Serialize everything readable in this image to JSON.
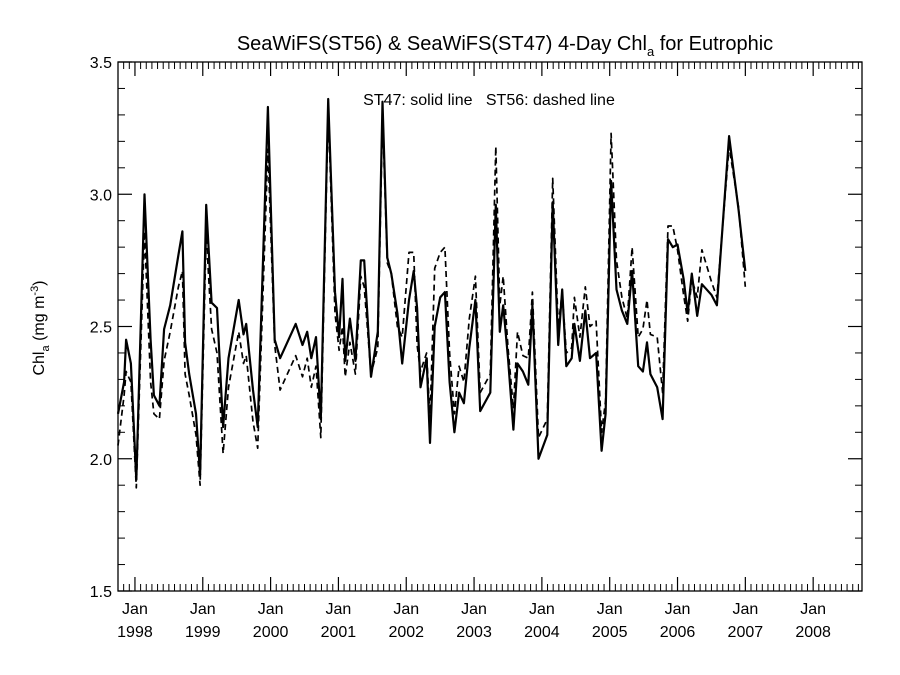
{
  "chart_data": {
    "type": "line",
    "title": {
      "main": "SeaWiFS(ST56) & SeaWiFS(ST47) 4-Day Chl",
      "sub": "a",
      "end": " for Eutrophic"
    },
    "annotation": "ST47: solid line   ST56: dashed line",
    "ylabel": {
      "base": "Chl",
      "sub": "a",
      "units_open": " (mg m",
      "sup": "-3",
      "units_close": ")"
    },
    "ylim": [
      1.5,
      3.5
    ],
    "y_ticks": [
      "1.5",
      "2.0",
      "2.5",
      "3.0",
      "3.5"
    ],
    "xlim": [
      1997.75,
      2008.72
    ],
    "x_ticks": [
      {
        "x": 1998,
        "month": "Jan",
        "year": "1998"
      },
      {
        "x": 1999,
        "month": "Jan",
        "year": "1999"
      },
      {
        "x": 2000,
        "month": "Jan",
        "year": "2000"
      },
      {
        "x": 2001,
        "month": "Jan",
        "year": "2001"
      },
      {
        "x": 2002,
        "month": "Jan",
        "year": "2002"
      },
      {
        "x": 2003,
        "month": "Jan",
        "year": "2003"
      },
      {
        "x": 2004,
        "month": "Jan",
        "year": "2004"
      },
      {
        "x": 2005,
        "month": "Jan",
        "year": "2005"
      },
      {
        "x": 2006,
        "month": "Jan",
        "year": "2006"
      },
      {
        "x": 2007,
        "month": "Jan",
        "year": "2007"
      },
      {
        "x": 2008,
        "month": "Jan",
        "year": "2008"
      }
    ],
    "series": [
      {
        "style": "solid",
        "color": "#000000",
        "points": [
          [
            1997.75,
            2.17
          ],
          [
            1997.84,
            2.29
          ],
          [
            1997.87,
            2.45
          ],
          [
            1997.94,
            2.36
          ],
          [
            1998.02,
            1.92
          ],
          [
            1998.14,
            3.0
          ],
          [
            1998.23,
            2.45
          ],
          [
            1998.28,
            2.24
          ],
          [
            1998.36,
            2.2
          ],
          [
            1998.43,
            2.49
          ],
          [
            1998.52,
            2.58
          ],
          [
            1998.64,
            2.77
          ],
          [
            1998.7,
            2.86
          ],
          [
            1998.74,
            2.44
          ],
          [
            1998.8,
            2.32
          ],
          [
            1998.9,
            2.17
          ],
          [
            1998.96,
            1.94
          ],
          [
            1999.05,
            2.96
          ],
          [
            1999.13,
            2.59
          ],
          [
            1999.21,
            2.57
          ],
          [
            1999.3,
            2.12
          ],
          [
            1999.38,
            2.38
          ],
          [
            1999.53,
            2.6
          ],
          [
            1999.6,
            2.47
          ],
          [
            1999.64,
            2.51
          ],
          [
            1999.74,
            2.26
          ],
          [
            1999.81,
            2.12
          ],
          [
            1999.96,
            3.33
          ],
          [
            2000.06,
            2.45
          ],
          [
            2000.14,
            2.38
          ],
          [
            2000.37,
            2.51
          ],
          [
            2000.47,
            2.43
          ],
          [
            2000.54,
            2.48
          ],
          [
            2000.6,
            2.38
          ],
          [
            2000.67,
            2.46
          ],
          [
            2000.74,
            2.15
          ],
          [
            2000.85,
            3.36
          ],
          [
            2000.95,
            2.63
          ],
          [
            2001.01,
            2.46
          ],
          [
            2001.06,
            2.68
          ],
          [
            2001.1,
            2.37
          ],
          [
            2001.17,
            2.53
          ],
          [
            2001.25,
            2.37
          ],
          [
            2001.33,
            2.75
          ],
          [
            2001.38,
            2.75
          ],
          [
            2001.48,
            2.31
          ],
          [
            2001.58,
            2.48
          ],
          [
            2001.65,
            3.35
          ],
          [
            2001.72,
            2.76
          ],
          [
            2001.78,
            2.7
          ],
          [
            2001.87,
            2.55
          ],
          [
            2001.94,
            2.36
          ],
          [
            2002.04,
            2.6
          ],
          [
            2002.11,
            2.71
          ],
          [
            2002.16,
            2.57
          ],
          [
            2002.21,
            2.27
          ],
          [
            2002.3,
            2.38
          ],
          [
            2002.35,
            2.06
          ],
          [
            2002.42,
            2.5
          ],
          [
            2002.5,
            2.61
          ],
          [
            2002.57,
            2.63
          ],
          [
            2002.64,
            2.29
          ],
          [
            2002.71,
            2.1
          ],
          [
            2002.78,
            2.25
          ],
          [
            2002.85,
            2.21
          ],
          [
            2002.93,
            2.42
          ],
          [
            2003.02,
            2.6
          ],
          [
            2003.09,
            2.18
          ],
          [
            2003.24,
            2.25
          ],
          [
            2003.32,
            2.96
          ],
          [
            2003.38,
            2.48
          ],
          [
            2003.43,
            2.58
          ],
          [
            2003.5,
            2.38
          ],
          [
            2003.58,
            2.11
          ],
          [
            2003.64,
            2.36
          ],
          [
            2003.72,
            2.33
          ],
          [
            2003.8,
            2.28
          ],
          [
            2003.86,
            2.58
          ],
          [
            2003.95,
            2.0
          ],
          [
            2004.08,
            2.09
          ],
          [
            2004.16,
            2.97
          ],
          [
            2004.24,
            2.43
          ],
          [
            2004.3,
            2.64
          ],
          [
            2004.36,
            2.35
          ],
          [
            2004.44,
            2.38
          ],
          [
            2004.48,
            2.51
          ],
          [
            2004.56,
            2.37
          ],
          [
            2004.64,
            2.56
          ],
          [
            2004.71,
            2.38
          ],
          [
            2004.8,
            2.4
          ],
          [
            2004.88,
            2.03
          ],
          [
            2004.94,
            2.17
          ],
          [
            2005.02,
            3.05
          ],
          [
            2005.1,
            2.64
          ],
          [
            2005.18,
            2.56
          ],
          [
            2005.26,
            2.51
          ],
          [
            2005.33,
            2.71
          ],
          [
            2005.42,
            2.35
          ],
          [
            2005.49,
            2.33
          ],
          [
            2005.55,
            2.44
          ],
          [
            2005.6,
            2.32
          ],
          [
            2005.7,
            2.27
          ],
          [
            2005.78,
            2.15
          ],
          [
            2005.86,
            2.83
          ],
          [
            2005.93,
            2.8
          ],
          [
            2006.0,
            2.81
          ],
          [
            2006.09,
            2.68
          ],
          [
            2006.15,
            2.55
          ],
          [
            2006.21,
            2.7
          ],
          [
            2006.29,
            2.54
          ],
          [
            2006.36,
            2.66
          ],
          [
            2006.5,
            2.62
          ],
          [
            2006.58,
            2.58
          ],
          [
            2006.76,
            3.22
          ],
          [
            2006.9,
            2.94
          ],
          [
            2007.0,
            2.71
          ]
        ]
      },
      {
        "style": "dashed",
        "color": "#000000",
        "points": [
          [
            1997.75,
            2.05
          ],
          [
            1997.84,
            2.24
          ],
          [
            1997.87,
            2.33
          ],
          [
            1997.94,
            2.29
          ],
          [
            1998.02,
            1.89
          ],
          [
            1998.14,
            2.86
          ],
          [
            1998.23,
            2.29
          ],
          [
            1998.28,
            2.17
          ],
          [
            1998.36,
            2.15
          ],
          [
            1998.43,
            2.37
          ],
          [
            1998.52,
            2.48
          ],
          [
            1998.64,
            2.65
          ],
          [
            1998.7,
            2.71
          ],
          [
            1998.74,
            2.32
          ],
          [
            1998.8,
            2.24
          ],
          [
            1998.9,
            2.09
          ],
          [
            1998.96,
            1.9
          ],
          [
            1999.05,
            2.85
          ],
          [
            1999.13,
            2.49
          ],
          [
            1999.21,
            2.4
          ],
          [
            1999.3,
            2.02
          ],
          [
            1999.38,
            2.27
          ],
          [
            1999.53,
            2.48
          ],
          [
            1999.6,
            2.36
          ],
          [
            1999.64,
            2.39
          ],
          [
            1999.74,
            2.14
          ],
          [
            1999.81,
            2.04
          ],
          [
            1999.96,
            3.17
          ],
          [
            2000.06,
            2.43
          ],
          [
            2000.14,
            2.26
          ],
          [
            2000.37,
            2.39
          ],
          [
            2000.47,
            2.31
          ],
          [
            2000.54,
            2.38
          ],
          [
            2000.6,
            2.27
          ],
          [
            2000.67,
            2.35
          ],
          [
            2000.74,
            2.08
          ],
          [
            2000.85,
            3.32
          ],
          [
            2000.95,
            2.55
          ],
          [
            2001.01,
            2.41
          ],
          [
            2001.06,
            2.5
          ],
          [
            2001.1,
            2.31
          ],
          [
            2001.17,
            2.44
          ],
          [
            2001.25,
            2.32
          ],
          [
            2001.33,
            2.69
          ],
          [
            2001.38,
            2.65
          ],
          [
            2001.48,
            2.32
          ],
          [
            2001.58,
            2.42
          ],
          [
            2001.65,
            3.3
          ],
          [
            2001.72,
            2.74
          ],
          [
            2001.78,
            2.7
          ],
          [
            2001.87,
            2.5
          ],
          [
            2001.94,
            2.46
          ],
          [
            2002.04,
            2.78
          ],
          [
            2002.11,
            2.78
          ],
          [
            2002.16,
            2.43
          ],
          [
            2002.21,
            2.33
          ],
          [
            2002.3,
            2.4
          ],
          [
            2002.35,
            2.15
          ],
          [
            2002.42,
            2.72
          ],
          [
            2002.5,
            2.78
          ],
          [
            2002.57,
            2.8
          ],
          [
            2002.64,
            2.4
          ],
          [
            2002.71,
            2.17
          ],
          [
            2002.78,
            2.35
          ],
          [
            2002.85,
            2.29
          ],
          [
            2002.93,
            2.53
          ],
          [
            2003.02,
            2.69
          ],
          [
            2003.09,
            2.25
          ],
          [
            2003.24,
            2.32
          ],
          [
            2003.32,
            3.18
          ],
          [
            2003.38,
            2.58
          ],
          [
            2003.43,
            2.69
          ],
          [
            2003.5,
            2.42
          ],
          [
            2003.58,
            2.19
          ],
          [
            2003.64,
            2.48
          ],
          [
            2003.72,
            2.39
          ],
          [
            2003.8,
            2.38
          ],
          [
            2003.86,
            2.63
          ],
          [
            2003.95,
            2.08
          ],
          [
            2004.08,
            2.15
          ],
          [
            2004.16,
            3.06
          ],
          [
            2004.24,
            2.5
          ],
          [
            2004.3,
            2.63
          ],
          [
            2004.36,
            2.4
          ],
          [
            2004.44,
            2.42
          ],
          [
            2004.48,
            2.61
          ],
          [
            2004.56,
            2.46
          ],
          [
            2004.64,
            2.65
          ],
          [
            2004.71,
            2.5
          ],
          [
            2004.8,
            2.52
          ],
          [
            2004.88,
            2.1
          ],
          [
            2004.94,
            2.22
          ],
          [
            2005.02,
            3.23
          ],
          [
            2005.1,
            2.75
          ],
          [
            2005.18,
            2.61
          ],
          [
            2005.26,
            2.53
          ],
          [
            2005.33,
            2.8
          ],
          [
            2005.42,
            2.46
          ],
          [
            2005.49,
            2.49
          ],
          [
            2005.55,
            2.6
          ],
          [
            2005.6,
            2.47
          ],
          [
            2005.7,
            2.46
          ],
          [
            2005.78,
            2.25
          ],
          [
            2005.86,
            2.88
          ],
          [
            2005.93,
            2.88
          ],
          [
            2006.0,
            2.79
          ],
          [
            2006.09,
            2.62
          ],
          [
            2006.15,
            2.52
          ],
          [
            2006.21,
            2.68
          ],
          [
            2006.29,
            2.61
          ],
          [
            2006.36,
            2.79
          ],
          [
            2006.5,
            2.67
          ],
          [
            2006.58,
            2.61
          ],
          [
            2006.76,
            3.18
          ],
          [
            2006.9,
            2.95
          ],
          [
            2007.0,
            2.65
          ]
        ]
      }
    ],
    "grid": false,
    "legend": "none"
  }
}
